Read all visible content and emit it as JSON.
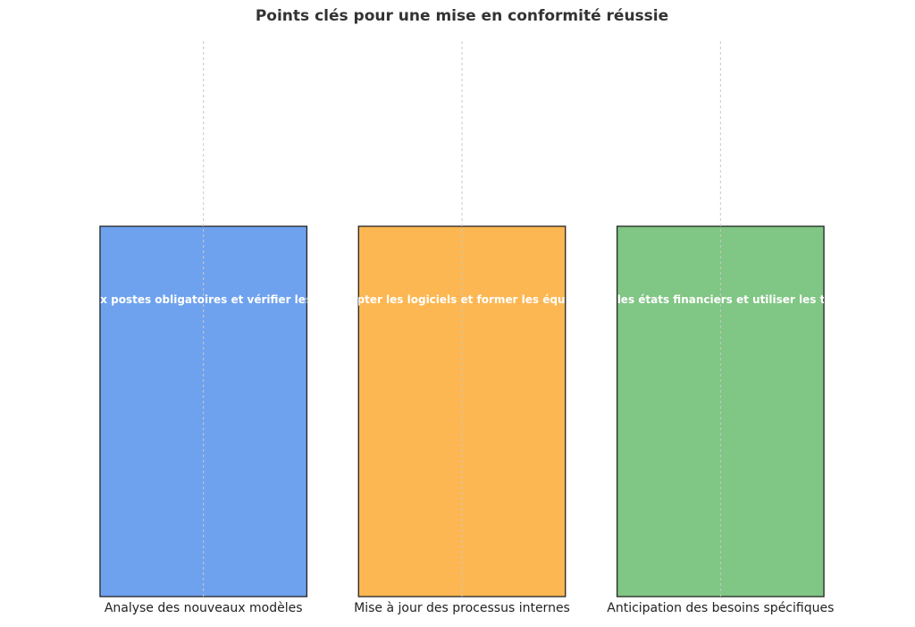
{
  "chart_data": {
    "type": "bar",
    "title": "Points clés pour une mise en conformité réussie",
    "categories": [
      "Analyse des nouveaux modèles",
      "Mise à jour des processus internes",
      "Anticipation des besoins spécifiques"
    ],
    "values": [
      1,
      1,
      1
    ],
    "ylim": [
      0,
      1.5
    ],
    "bar_labels": [
      "Analyser les nouveaux postes obligatoires et vérifier les options facultatives",
      "Adapter les logiciels et former les équipes",
      "Réviser les états financiers et utiliser les tableaux"
    ],
    "colors": [
      "#6fa2ee",
      "#fdb752",
      "#80c684"
    ],
    "grid": "vertical",
    "legend": "none"
  }
}
